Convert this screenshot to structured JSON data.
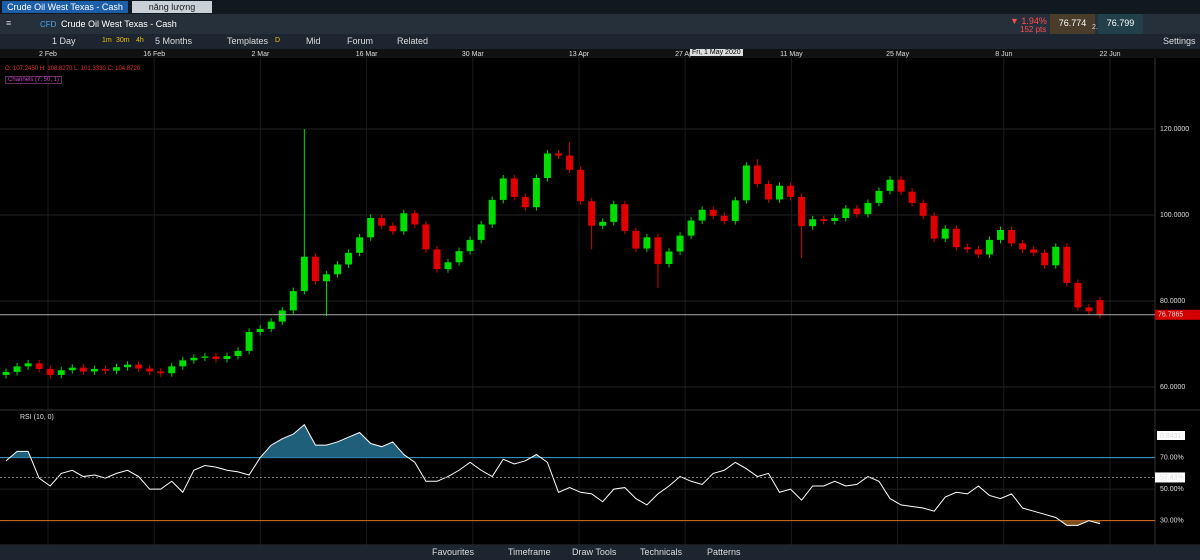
{
  "tabs": [
    "Crude Oil West Texas - Cash",
    "năng lượng"
  ],
  "instrument": {
    "badge": "CFD",
    "name": "Crude Oil West Texas - Cash"
  },
  "quote": {
    "change": "▼ 1.94%",
    "points": "152 pts",
    "sell": "76.774",
    "spread": "2.5",
    "buy": "76.799"
  },
  "toolbar": {
    "interval": "1 Day",
    "quick": [
      "1m",
      "30m",
      "4h"
    ],
    "range": "5 Months",
    "templates": "Templates",
    "d": "D",
    "mid": "Mid",
    "forum": "Forum",
    "related": "Related",
    "settings": "Settings"
  },
  "legend": {
    "ohlc": [
      "O: 107.2450",
      "H: 108.8270",
      "L: 101.3330",
      "C: 104.8720"
    ],
    "indicator": "Channels (7, 50, 1)"
  },
  "crosshair_date": "Fri, 1 May 2020",
  "bottom": [
    "Favourites",
    "Timeframe",
    "Draw Tools",
    "Technicals",
    "Patterns"
  ],
  "chart_data": [
    {
      "type": "candlestick",
      "up_color": "#00dd00",
      "down_color": "#e00000",
      "x_labels": [
        "2 Feb",
        "16 Feb",
        "2 Mar",
        "16 Mar",
        "30 Mar",
        "13 Apr",
        "27 Apr",
        "11 May",
        "25 May",
        "8 Jun",
        "22 Jun"
      ],
      "open": [
        62.8,
        63.5,
        64.8,
        65.5,
        64.2,
        62.8,
        63.9,
        64.5,
        63.6,
        64.2,
        63.8,
        64.6,
        65.2,
        64.3,
        63.6,
        63.2,
        64.8,
        66.2,
        66.8,
        67.1,
        66.5,
        67.2,
        68.4,
        72.8,
        73.5,
        75.2,
        77.8,
        82.3,
        90.3,
        84.6,
        86.2,
        88.5,
        91.2,
        94.8,
        99.3,
        97.5,
        96.2,
        100.4,
        97.8,
        92.0,
        87.4,
        89.0,
        91.6,
        94.2,
        97.8,
        103.5,
        108.5,
        104.2,
        101.8,
        108.6,
        114.3,
        113.8,
        110.5,
        103.2,
        97.5,
        98.4,
        102.5,
        96.3,
        92.2,
        94.8,
        88.6,
        91.5,
        95.2,
        98.7,
        101.2,
        99.8,
        98.6,
        103.4,
        111.5,
        107.2,
        103.6,
        106.8,
        104.2,
        97.4,
        99.0,
        98.6,
        99.3,
        101.5,
        100.2,
        102.8,
        105.6,
        108.2,
        105.4,
        102.8,
        99.8,
        94.5,
        96.8,
        92.5,
        92.0,
        90.8,
        94.2,
        96.5,
        93.4,
        92.0,
        91.2,
        88.3,
        92.6,
        84.2,
        78.5,
        80.2
      ],
      "high": [
        64.3,
        65.6,
        66.3,
        66.3,
        65.0,
        64.7,
        65.3,
        65.3,
        65.0,
        65.0,
        65.4,
        66.0,
        66.0,
        65.1,
        64.4,
        65.6,
        67.0,
        67.6,
        67.9,
        67.9,
        68.0,
        69.2,
        73.6,
        74.3,
        76.0,
        78.6,
        83.1,
        120.0,
        91.1,
        87.0,
        89.3,
        92.0,
        95.6,
        100.1,
        100.1,
        98.3,
        101.2,
        101.2,
        98.6,
        92.8,
        89.8,
        92.4,
        95.0,
        98.6,
        104.3,
        109.3,
        109.3,
        105.0,
        109.4,
        115.1,
        115.1,
        117.0,
        111.3,
        104.0,
        99.2,
        103.3,
        103.3,
        97.1,
        95.6,
        95.6,
        92.3,
        96.0,
        99.5,
        102.0,
        102.0,
        100.6,
        104.2,
        112.3,
        113.0,
        108.0,
        107.6,
        107.6,
        105.0,
        99.8,
        99.8,
        100.1,
        102.3,
        102.3,
        103.6,
        106.4,
        109.0,
        109.0,
        106.2,
        103.6,
        100.6,
        97.6,
        97.6,
        93.3,
        92.8,
        95.0,
        97.3,
        97.3,
        94.2,
        92.8,
        92.0,
        93.4,
        93.4,
        85.0,
        79.3,
        81.0
      ],
      "low": [
        62.0,
        62.7,
        64.0,
        63.4,
        62.0,
        62.0,
        63.1,
        62.8,
        62.8,
        63.0,
        63.0,
        63.8,
        63.5,
        62.8,
        62.4,
        62.4,
        64.0,
        65.4,
        66.0,
        65.7,
        65.7,
        66.4,
        67.6,
        72.0,
        72.7,
        74.4,
        77.0,
        81.5,
        83.8,
        76.5,
        85.4,
        87.7,
        90.4,
        94.0,
        96.7,
        95.4,
        95.4,
        97.0,
        91.2,
        86.6,
        86.6,
        88.2,
        90.8,
        93.4,
        97.0,
        102.7,
        103.4,
        101.0,
        101.0,
        107.8,
        113.0,
        109.7,
        102.4,
        92.0,
        96.7,
        97.6,
        95.5,
        91.4,
        91.4,
        83.0,
        87.8,
        90.7,
        94.4,
        97.9,
        99.0,
        97.8,
        97.8,
        102.6,
        106.4,
        102.8,
        102.8,
        103.4,
        90.0,
        96.6,
        97.8,
        97.8,
        98.5,
        99.4,
        99.4,
        102.0,
        104.8,
        104.6,
        102.0,
        99.0,
        93.7,
        93.7,
        91.7,
        91.2,
        90.0,
        90.0,
        93.4,
        92.6,
        91.2,
        90.4,
        87.5,
        87.5,
        83.4,
        77.7,
        76.8,
        76.0
      ],
      "close": [
        63.5,
        64.8,
        65.5,
        64.2,
        62.8,
        63.9,
        64.5,
        63.6,
        64.2,
        63.8,
        64.6,
        65.2,
        64.3,
        63.6,
        63.2,
        64.8,
        66.2,
        66.8,
        67.1,
        66.5,
        67.2,
        68.4,
        72.8,
        73.5,
        75.2,
        77.8,
        82.3,
        90.3,
        84.6,
        86.2,
        88.5,
        91.2,
        94.8,
        99.3,
        97.5,
        96.2,
        100.4,
        97.8,
        92.0,
        87.4,
        89.0,
        91.6,
        94.2,
        97.8,
        103.5,
        108.5,
        104.2,
        101.8,
        108.6,
        114.3,
        113.8,
        110.5,
        103.2,
        97.5,
        98.4,
        102.5,
        96.3,
        92.2,
        94.8,
        88.6,
        91.5,
        95.2,
        98.7,
        101.2,
        99.8,
        98.6,
        103.4,
        111.5,
        107.2,
        103.6,
        106.8,
        104.2,
        97.4,
        99.0,
        98.6,
        99.3,
        101.5,
        100.2,
        102.8,
        105.6,
        108.2,
        105.4,
        102.8,
        99.8,
        94.5,
        96.8,
        92.5,
        92.0,
        90.8,
        94.2,
        96.5,
        93.4,
        92.0,
        91.2,
        88.3,
        92.6,
        84.2,
        78.5,
        77.6,
        76.8
      ],
      "ylim": [
        54.65,
        136.5
      ],
      "yticks": [
        {
          "value": 60,
          "label": "60.0000"
        },
        {
          "value": 80,
          "label": "80.0000"
        },
        {
          "value": 100,
          "label": "100.0000"
        },
        {
          "value": 120,
          "label": "120.0000"
        }
      ],
      "last_price": 76.7865,
      "grid": true
    },
    {
      "type": "line",
      "title": "RSI (10, 0)",
      "color": "#ffffff",
      "readout": "0.8431",
      "values": [
        68,
        74,
        74,
        57,
        52,
        60,
        62,
        58,
        59,
        57,
        60,
        62,
        58,
        50,
        50,
        55,
        48,
        62,
        65,
        64,
        62,
        61,
        59,
        70,
        78,
        82,
        85,
        91,
        78,
        78,
        80,
        83,
        86,
        79,
        77,
        80,
        72,
        67,
        55,
        55,
        58,
        62,
        67,
        62,
        58,
        69,
        66,
        68,
        72,
        67,
        48,
        51,
        48,
        47,
        42,
        50,
        51,
        44,
        40,
        47,
        52,
        58,
        55,
        53,
        60,
        62,
        67,
        63,
        58,
        60,
        48,
        50,
        43,
        52,
        52,
        55,
        52,
        53,
        58,
        55,
        44,
        40,
        39,
        38,
        36,
        45,
        48,
        47,
        52,
        46,
        44,
        47,
        38,
        36,
        34,
        32,
        27,
        27,
        30,
        28
      ],
      "ylim": [
        14.5,
        100.3
      ],
      "yticks": [
        {
          "value": 30,
          "label": "30.00%"
        },
        {
          "value": 50,
          "label": "50.00%"
        },
        {
          "value": 70,
          "label": "70.00%"
        }
      ],
      "marker": {
        "value": 57.43,
        "label": "57.43%"
      }
    }
  ]
}
